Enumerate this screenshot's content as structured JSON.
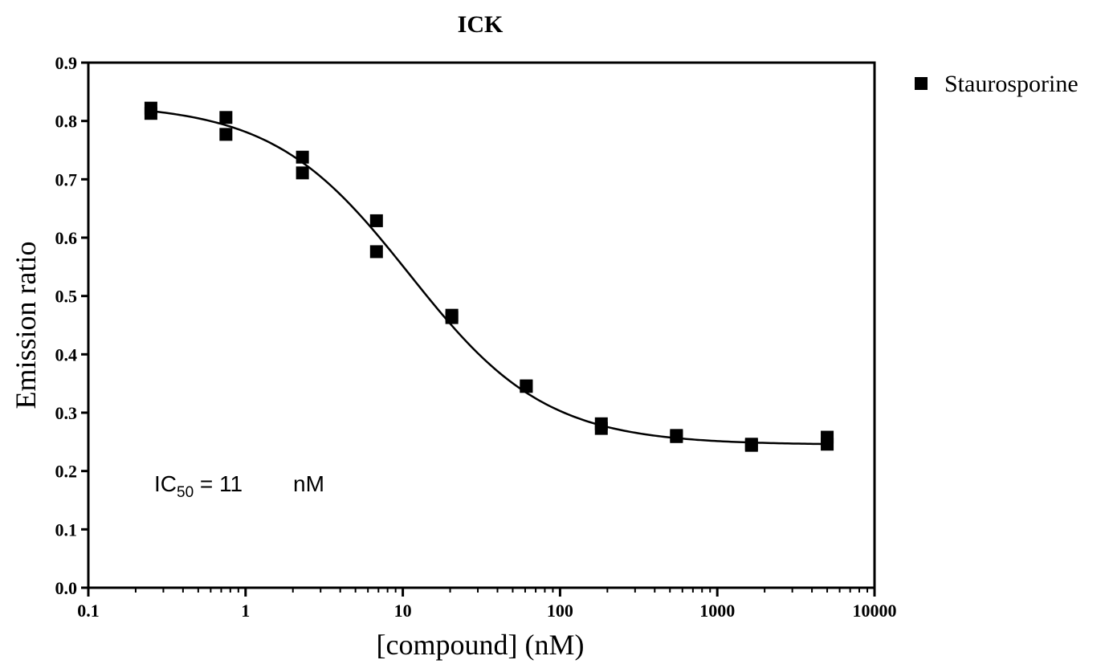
{
  "chart_data": {
    "type": "scatter",
    "title": "ICK",
    "xlabel": "[compound] (nM)",
    "ylabel": "Emission ratio",
    "x_scale": "log",
    "xlim": [
      0.1,
      10000
    ],
    "ylim": [
      0.0,
      0.9
    ],
    "x_ticks": [
      0.1,
      1,
      10,
      100,
      1000,
      10000
    ],
    "x_tick_labels": [
      "0.1",
      "1",
      "10",
      "100",
      "1000",
      "10000"
    ],
    "y_ticks": [
      0.0,
      0.1,
      0.2,
      0.3,
      0.4,
      0.5,
      0.6,
      0.7,
      0.8,
      0.9
    ],
    "y_tick_labels": [
      "0.0",
      "0.1",
      "0.2",
      "0.3",
      "0.4",
      "0.5",
      "0.6",
      "0.7",
      "0.8",
      "0.9"
    ],
    "grid": false,
    "legend_position": "top-right-outside",
    "series": [
      {
        "name": "Staurosporine",
        "marker": "square",
        "color": "#000000",
        "points": [
          {
            "x": 0.25,
            "y": 0.822
          },
          {
            "x": 0.25,
            "y": 0.813
          },
          {
            "x": 0.75,
            "y": 0.806
          },
          {
            "x": 0.75,
            "y": 0.777
          },
          {
            "x": 2.3,
            "y": 0.738
          },
          {
            "x": 2.3,
            "y": 0.711
          },
          {
            "x": 6.8,
            "y": 0.629
          },
          {
            "x": 6.8,
            "y": 0.576
          },
          {
            "x": 20.5,
            "y": 0.467
          },
          {
            "x": 20.5,
            "y": 0.463
          },
          {
            "x": 61,
            "y": 0.346
          },
          {
            "x": 61,
            "y": 0.345
          },
          {
            "x": 183,
            "y": 0.281
          },
          {
            "x": 183,
            "y": 0.273
          },
          {
            "x": 550,
            "y": 0.261
          },
          {
            "x": 550,
            "y": 0.259
          },
          {
            "x": 1650,
            "y": 0.246
          },
          {
            "x": 1650,
            "y": 0.244
          },
          {
            "x": 5000,
            "y": 0.258
          },
          {
            "x": 5000,
            "y": 0.246
          }
        ]
      }
    ],
    "fit_curve": {
      "model": "four-parameter logistic",
      "bottom": 0.245,
      "top": 0.83,
      "ic50": 11,
      "hill": 1,
      "x_range": [
        0.25,
        5000
      ]
    },
    "annotation": {
      "prefix": "IC",
      "subscript": "50",
      "value": " = 11",
      "unit": "nM"
    }
  }
}
